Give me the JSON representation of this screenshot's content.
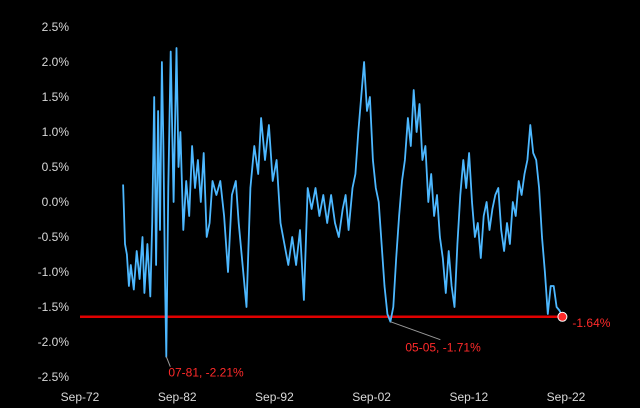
{
  "chart_data": {
    "type": "line",
    "title": "",
    "xlabel": "",
    "ylabel": "",
    "x_ticks": [
      "Sep-72",
      "Sep-82",
      "Sep-92",
      "Sep-02",
      "Sep-12",
      "Sep-22"
    ],
    "y_ticks": [
      "2.5%",
      "2.0%",
      "1.5%",
      "1.0%",
      "0.5%",
      "0.0%",
      "-0.5%",
      "-1.0%",
      "-1.5%",
      "-2.0%",
      "-2.5%"
    ],
    "xlim": [
      1972.67,
      2022.67
    ],
    "ylim": [
      -2.5,
      2.5
    ],
    "grid": false,
    "legend": "none",
    "colors": {
      "series": "#4db8ff",
      "reference": "#e00000",
      "annotation": "#ff2a2a",
      "leader": "#9a9a9a",
      "background": "#000000",
      "ticks": "#d9d9d9"
    },
    "series": [
      {
        "values": [
          [
            1977.1,
            0.25
          ],
          [
            1977.3,
            -0.6
          ],
          [
            1977.5,
            -0.75
          ],
          [
            1977.7,
            -1.2
          ],
          [
            1977.9,
            -0.9
          ],
          [
            1978.2,
            -1.25
          ],
          [
            1978.5,
            -0.7
          ],
          [
            1978.8,
            -1.1
          ],
          [
            1979.1,
            -0.5
          ],
          [
            1979.3,
            -1.3
          ],
          [
            1979.6,
            -0.6
          ],
          [
            1979.9,
            -1.35
          ],
          [
            1980.1,
            -0.3
          ],
          [
            1980.3,
            1.5
          ],
          [
            1980.5,
            -0.9
          ],
          [
            1980.7,
            1.3
          ],
          [
            1980.9,
            -0.4
          ],
          [
            1981.1,
            2.0
          ],
          [
            1981.25,
            0.8
          ],
          [
            1981.4,
            -1.0
          ],
          [
            1981.55,
            -2.21
          ],
          [
            1981.75,
            0.2
          ],
          [
            1982.0,
            2.15
          ],
          [
            1982.3,
            0.0
          ],
          [
            1982.6,
            2.2
          ],
          [
            1982.8,
            0.5
          ],
          [
            1983.0,
            1.0
          ],
          [
            1983.3,
            -0.4
          ],
          [
            1983.6,
            0.3
          ],
          [
            1983.9,
            -0.2
          ],
          [
            1984.2,
            0.8
          ],
          [
            1984.5,
            0.2
          ],
          [
            1984.8,
            0.6
          ],
          [
            1985.1,
            0.0
          ],
          [
            1985.4,
            0.7
          ],
          [
            1985.7,
            -0.5
          ],
          [
            1986.0,
            -0.3
          ],
          [
            1986.3,
            0.3
          ],
          [
            1986.7,
            0.1
          ],
          [
            1987.1,
            0.3
          ],
          [
            1987.5,
            -0.2
          ],
          [
            1987.9,
            -1.0
          ],
          [
            1988.3,
            0.1
          ],
          [
            1988.7,
            0.3
          ],
          [
            1989.0,
            -0.3
          ],
          [
            1989.4,
            -0.9
          ],
          [
            1989.8,
            -1.5
          ],
          [
            1990.2,
            0.2
          ],
          [
            1990.6,
            0.8
          ],
          [
            1991.0,
            0.4
          ],
          [
            1991.3,
            1.2
          ],
          [
            1991.7,
            0.6
          ],
          [
            1992.1,
            1.1
          ],
          [
            1992.5,
            0.3
          ],
          [
            1992.9,
            0.6
          ],
          [
            1993.3,
            -0.3
          ],
          [
            1993.7,
            -0.6
          ],
          [
            1994.1,
            -0.9
          ],
          [
            1994.5,
            -0.5
          ],
          [
            1994.9,
            -0.9
          ],
          [
            1995.3,
            -0.4
          ],
          [
            1995.7,
            -1.4
          ],
          [
            1996.1,
            0.2
          ],
          [
            1996.5,
            -0.1
          ],
          [
            1996.9,
            0.2
          ],
          [
            1997.3,
            -0.2
          ],
          [
            1997.7,
            0.1
          ],
          [
            1998.1,
            -0.3
          ],
          [
            1998.5,
            0.1
          ],
          [
            1998.9,
            -0.3
          ],
          [
            1999.3,
            -0.5
          ],
          [
            1999.7,
            -0.1
          ],
          [
            2000.0,
            0.1
          ],
          [
            2000.3,
            -0.4
          ],
          [
            2000.7,
            0.2
          ],
          [
            2001.0,
            0.4
          ],
          [
            2001.3,
            1.0
          ],
          [
            2001.6,
            1.5
          ],
          [
            2001.9,
            2.0
          ],
          [
            2002.2,
            1.3
          ],
          [
            2002.5,
            1.5
          ],
          [
            2002.8,
            0.6
          ],
          [
            2003.1,
            0.2
          ],
          [
            2003.4,
            0.0
          ],
          [
            2003.7,
            -0.6
          ],
          [
            2004.0,
            -1.2
          ],
          [
            2004.3,
            -1.6
          ],
          [
            2004.6,
            -1.71
          ],
          [
            2004.9,
            -1.5
          ],
          [
            2005.2,
            -0.8
          ],
          [
            2005.5,
            -0.2
          ],
          [
            2005.8,
            0.3
          ],
          [
            2006.1,
            0.6
          ],
          [
            2006.4,
            1.2
          ],
          [
            2006.7,
            0.8
          ],
          [
            2007.0,
            1.6
          ],
          [
            2007.3,
            1.0
          ],
          [
            2007.6,
            1.4
          ],
          [
            2007.9,
            0.6
          ],
          [
            2008.2,
            0.8
          ],
          [
            2008.5,
            0.0
          ],
          [
            2008.8,
            0.4
          ],
          [
            2009.1,
            -0.2
          ],
          [
            2009.4,
            0.1
          ],
          [
            2009.7,
            -0.5
          ],
          [
            2010.0,
            -0.8
          ],
          [
            2010.3,
            -1.3
          ],
          [
            2010.6,
            -0.7
          ],
          [
            2010.9,
            -1.2
          ],
          [
            2011.2,
            -1.5
          ],
          [
            2011.5,
            -0.6
          ],
          [
            2011.8,
            0.1
          ],
          [
            2012.1,
            0.6
          ],
          [
            2012.4,
            0.2
          ],
          [
            2012.7,
            0.7
          ],
          [
            2013.0,
            0.0
          ],
          [
            2013.3,
            -0.5
          ],
          [
            2013.6,
            -0.3
          ],
          [
            2013.9,
            -0.8
          ],
          [
            2014.2,
            -0.2
          ],
          [
            2014.5,
            0.0
          ],
          [
            2014.8,
            -0.4
          ],
          [
            2015.1,
            -0.1
          ],
          [
            2015.4,
            0.1
          ],
          [
            2015.7,
            0.2
          ],
          [
            2016.0,
            -0.4
          ],
          [
            2016.3,
            -0.7
          ],
          [
            2016.6,
            -0.3
          ],
          [
            2016.9,
            -0.6
          ],
          [
            2017.2,
            0.0
          ],
          [
            2017.5,
            -0.2
          ],
          [
            2017.8,
            0.3
          ],
          [
            2018.1,
            0.1
          ],
          [
            2018.4,
            0.4
          ],
          [
            2018.7,
            0.6
          ],
          [
            2019.0,
            1.1
          ],
          [
            2019.3,
            0.7
          ],
          [
            2019.6,
            0.6
          ],
          [
            2019.9,
            0.2
          ],
          [
            2020.2,
            -0.5
          ],
          [
            2020.5,
            -1.0
          ],
          [
            2020.8,
            -1.6
          ],
          [
            2021.1,
            -1.2
          ],
          [
            2021.4,
            -1.2
          ],
          [
            2021.7,
            -1.5
          ],
          [
            2022.0,
            -1.55
          ],
          [
            2022.3,
            -1.64
          ]
        ]
      }
    ],
    "reference_line": {
      "y": -1.64
    },
    "annotations": [
      {
        "text": "07-81, -2.21%",
        "x": 1981.55,
        "y": -2.21
      },
      {
        "text": "05-05, -1.71%",
        "x": 2004.6,
        "y": -1.71
      },
      {
        "text": "-1.64%",
        "x": 2022.3,
        "y": -1.64
      }
    ]
  }
}
